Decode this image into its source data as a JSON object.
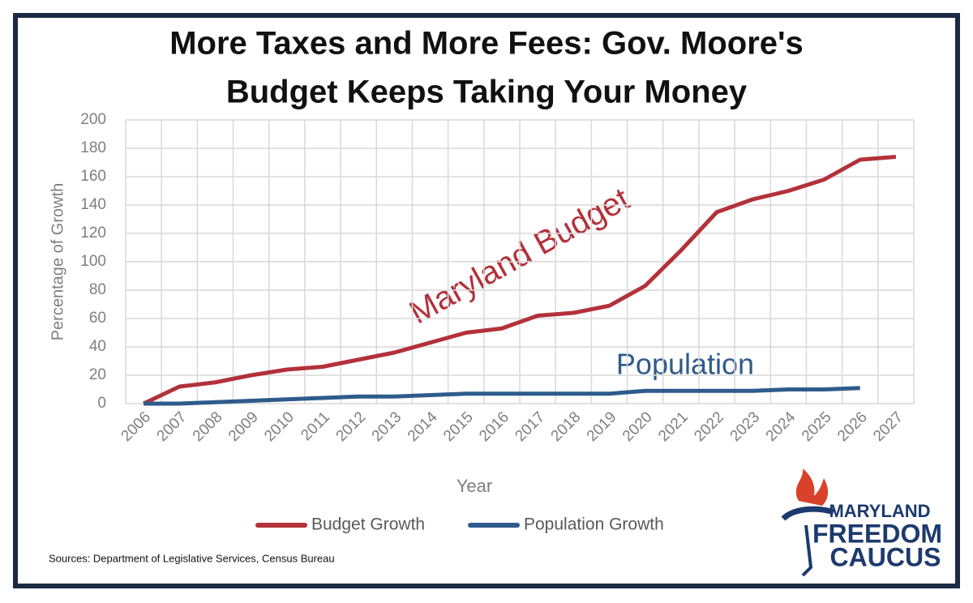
{
  "chart_data": {
    "type": "line",
    "title": [
      "More Taxes and More Fees: Gov. Moore's",
      "Budget Keeps Taking Your Money"
    ],
    "x_label": "Year",
    "y_label": "Percentage of Growth",
    "categories": [
      "2006",
      "2007",
      "2008",
      "2009",
      "2010",
      "2011",
      "2012",
      "2013",
      "2014",
      "2015",
      "2016",
      "2017",
      "2018",
      "2019",
      "2020",
      "2021",
      "2022",
      "2023",
      "2024",
      "2025",
      "2026",
      "2027"
    ],
    "series": [
      {
        "name": "Budget Growth",
        "color": "#b3313a",
        "values": [
          0,
          12,
          15,
          20,
          24,
          26,
          31,
          36,
          43,
          50,
          53,
          62,
          64,
          69,
          83,
          108,
          135,
          144,
          150,
          158,
          172,
          174
        ]
      },
      {
        "name": "Population Growth",
        "color": "#2e5b8c",
        "values": [
          0,
          0,
          1,
          2,
          3,
          4,
          5,
          5,
          6,
          7,
          7,
          7,
          7,
          7,
          9,
          9,
          9,
          9,
          10,
          10,
          11,
          null
        ]
      }
    ],
    "ylim": [
      0,
      200
    ],
    "yticks": [
      0,
      20,
      40,
      60,
      80,
      100,
      120,
      140,
      160,
      180,
      200
    ],
    "grid": true,
    "legend": "bottom",
    "annotations": [
      "Maryland Budget",
      "Population"
    ],
    "source": "Sources: Department of Legislative Services, Census Bureau",
    "logo": [
      "MARYLAND",
      "FREEDOM",
      "CAUCUS"
    ]
  }
}
